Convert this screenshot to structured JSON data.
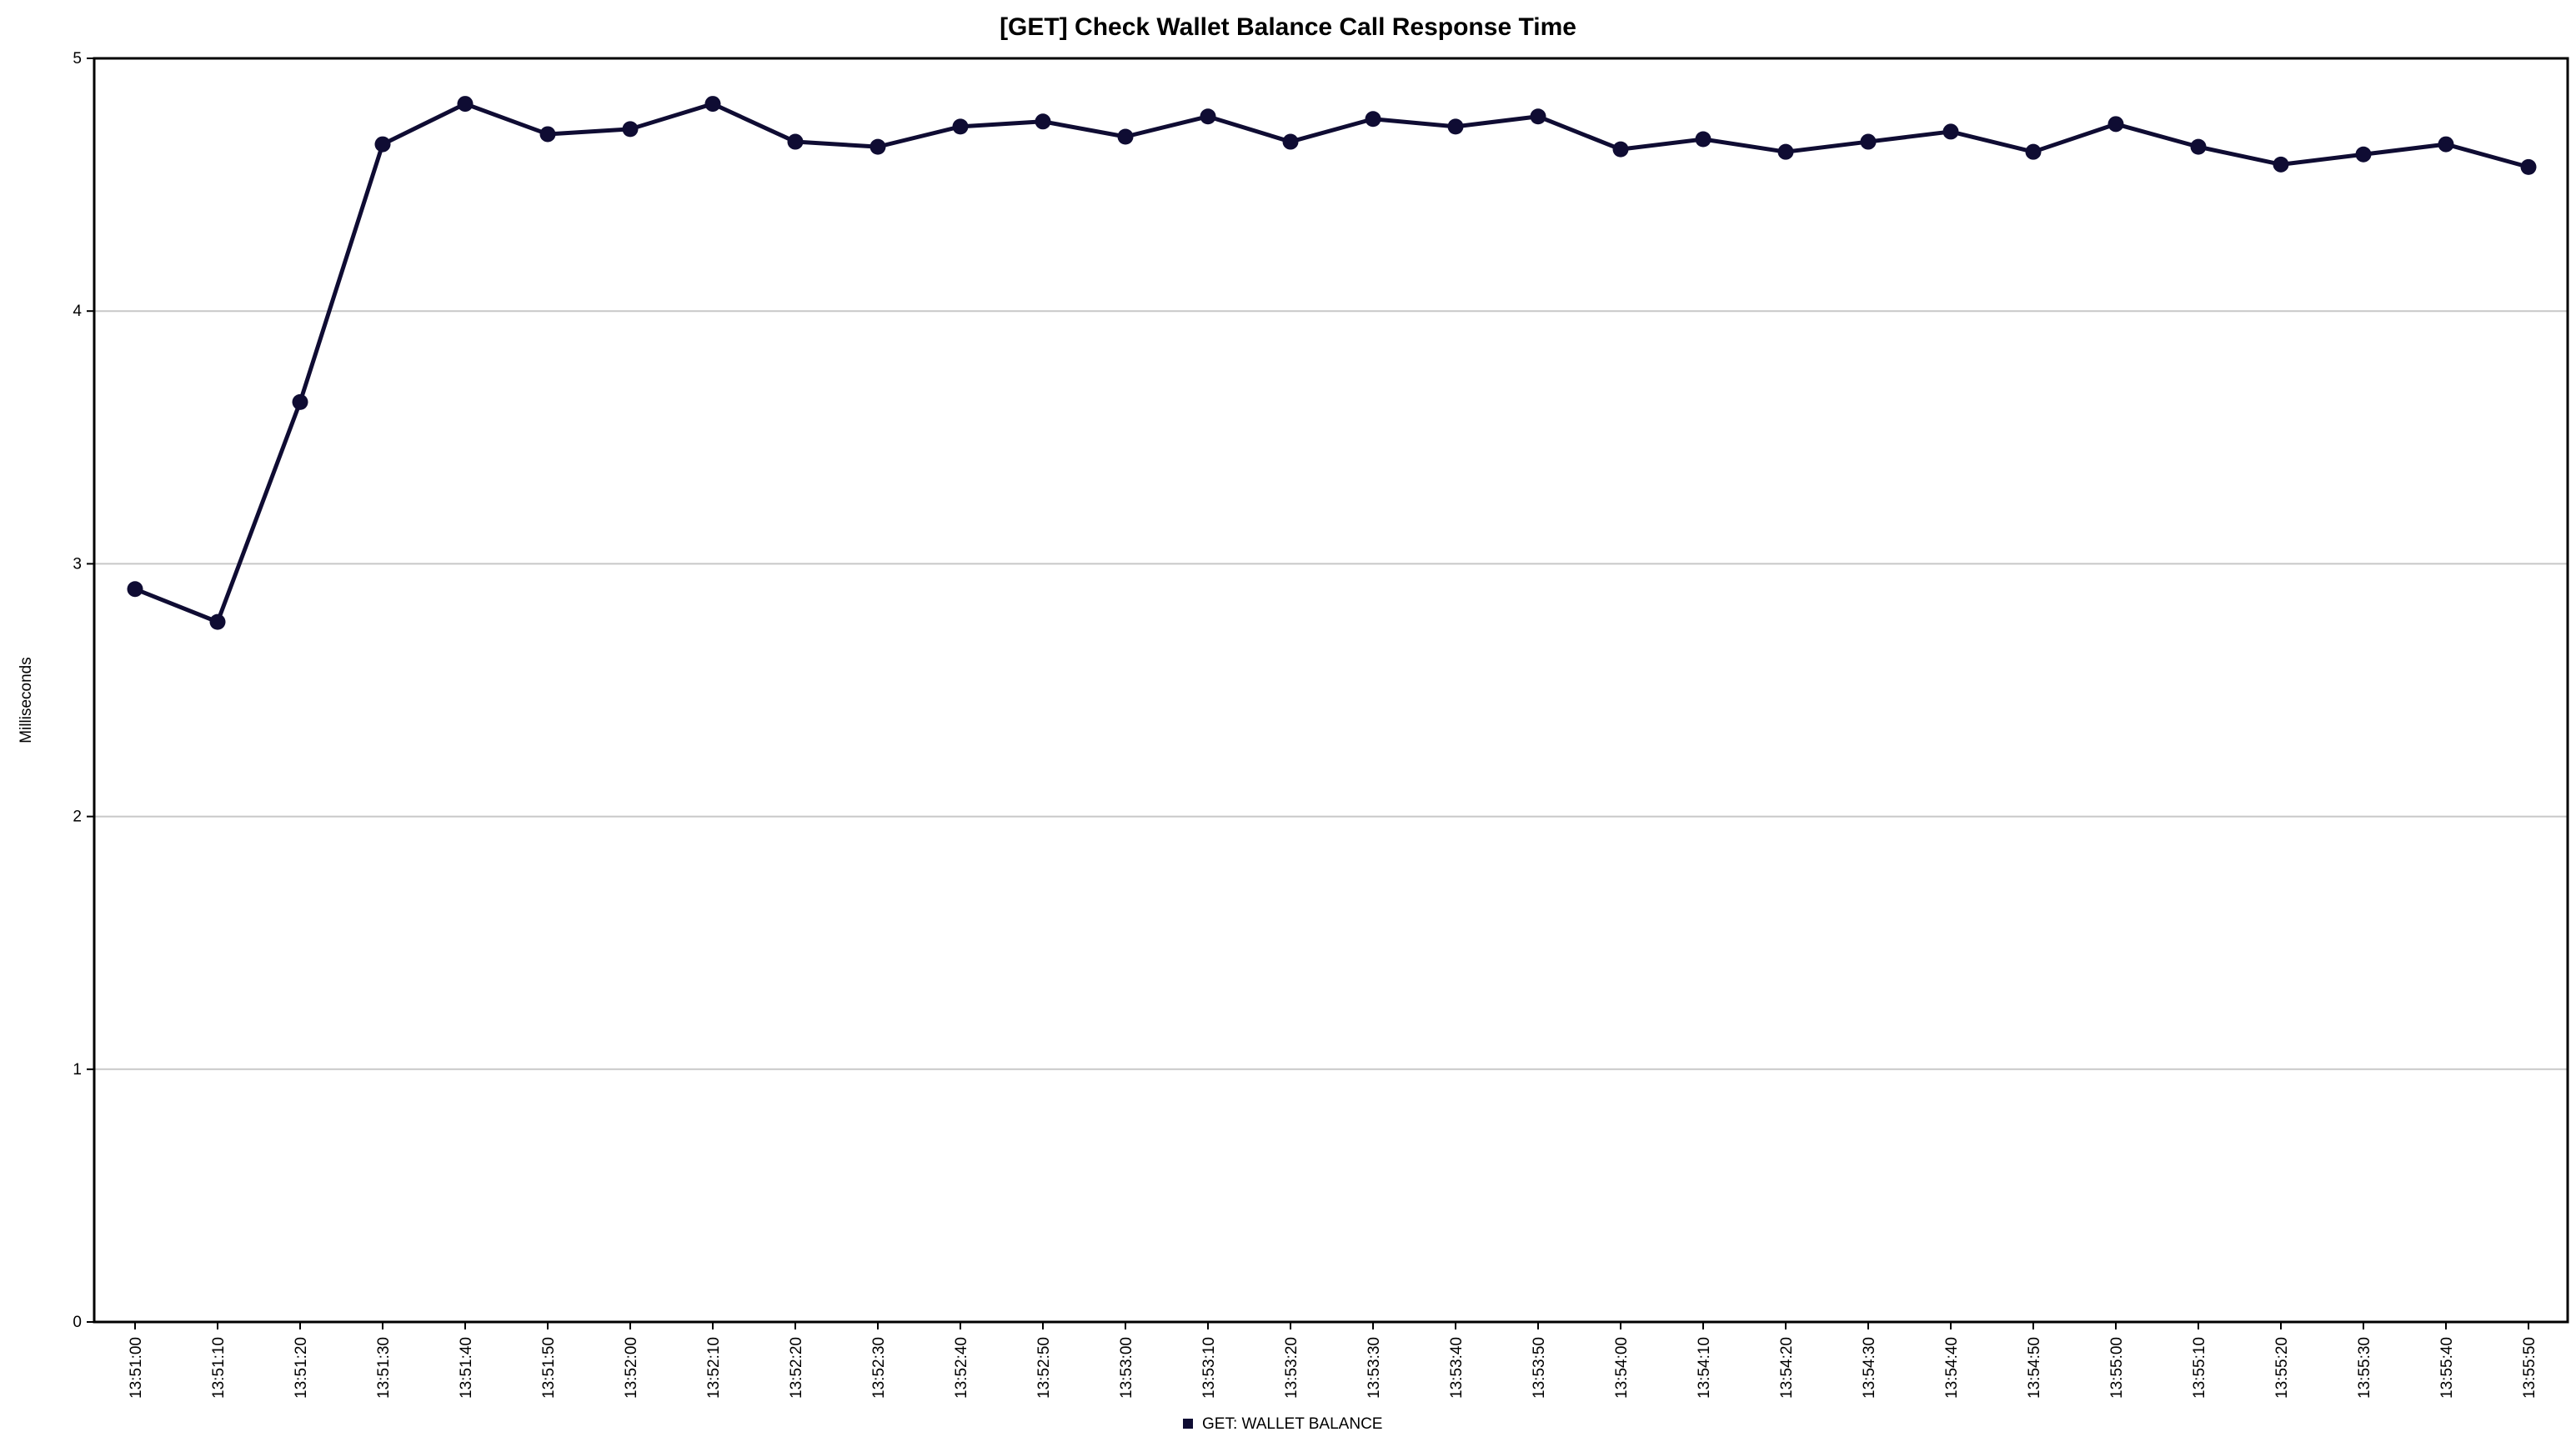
{
  "chart_data": {
    "type": "line",
    "title": "[GET] Check Wallet Balance Call Response Time",
    "xlabel": "",
    "ylabel": "Milliseconds",
    "ylim": [
      0,
      5
    ],
    "yticks": [
      "0",
      "1",
      "2",
      "3",
      "4",
      "5"
    ],
    "grid": "horizontal",
    "legend_position": "bottom-center",
    "colors": {
      "series": "#0f0c33",
      "grid": "#c8c8c8",
      "axis": "#000000"
    },
    "categories": [
      "13:51:00",
      "13:51:10",
      "13:51:20",
      "13:51:30",
      "13:51:40",
      "13:51:50",
      "13:52:00",
      "13:52:10",
      "13:52:20",
      "13:52:30",
      "13:52:40",
      "13:52:50",
      "13:53:00",
      "13:53:10",
      "13:53:20",
      "13:53:30",
      "13:53:40",
      "13:53:50",
      "13:54:00",
      "13:54:10",
      "13:54:20",
      "13:54:30",
      "13:54:40",
      "13:54:50",
      "13:55:00",
      "13:55:10",
      "13:55:20",
      "13:55:30",
      "13:55:40",
      "13:55:50"
    ],
    "series": [
      {
        "name": "GET: WALLET BALANCE",
        "values": [
          2.9,
          2.77,
          3.64,
          4.66,
          4.82,
          4.7,
          4.72,
          4.82,
          4.67,
          4.65,
          4.73,
          4.75,
          4.69,
          4.77,
          4.67,
          4.76,
          4.73,
          4.77,
          4.64,
          4.68,
          4.63,
          4.67,
          4.71,
          4.63,
          4.74,
          4.65,
          4.58,
          4.62,
          4.66,
          4.57
        ]
      }
    ]
  }
}
